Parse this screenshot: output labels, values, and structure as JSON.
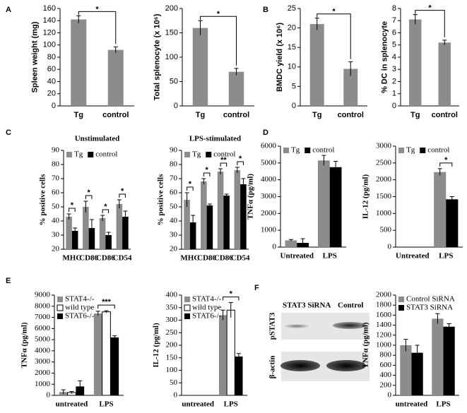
{
  "chart_data": [
    {
      "type": "bar",
      "panel": "A",
      "ylabel": "Spleen weight (mg)",
      "categories": [
        "Tg",
        "control"
      ],
      "series": [
        {
          "color": "#8c8c8c",
          "values": [
            142,
            92
          ],
          "errors": [
            6,
            5
          ]
        }
      ],
      "ylim": [
        0,
        160
      ],
      "yticks": [
        0,
        20,
        40,
        60,
        80,
        100,
        120,
        140,
        160
      ],
      "annotation": "*"
    },
    {
      "type": "bar",
      "ylabel": "Total splenocyte (x 10⁶)",
      "categories": [
        "Tg",
        "control"
      ],
      "series": [
        {
          "color": "#8c8c8c",
          "values": [
            160,
            70
          ],
          "errors": [
            15,
            7
          ]
        }
      ],
      "ylim": [
        0,
        200
      ],
      "yticks": [
        0,
        50,
        100,
        150,
        200
      ],
      "annotation": "*"
    },
    {
      "type": "bar",
      "panel": "B",
      "ylabel": "BMDC yield (x 10⁶)",
      "categories": [
        "Tg",
        "control"
      ],
      "series": [
        {
          "color": "#8c8c8c",
          "values": [
            21,
            9.5
          ],
          "errors": [
            1.5,
            1.8
          ]
        }
      ],
      "ylim": [
        0,
        25
      ],
      "yticks": [
        0,
        5,
        10,
        15,
        20,
        25
      ],
      "annotation": "*"
    },
    {
      "type": "bar",
      "ylabel": "% DC in splenocyte",
      "categories": [
        "Tg",
        "control"
      ],
      "series": [
        {
          "color": "#8c8c8c",
          "values": [
            7.1,
            5.2
          ],
          "errors": [
            0.4,
            0.2
          ]
        }
      ],
      "ylim": [
        0,
        8
      ],
      "yticks": [
        0,
        1,
        2,
        3,
        4,
        5,
        6,
        7,
        8
      ],
      "annotation": "*"
    },
    {
      "type": "bar",
      "panel": "C",
      "title": "Unstimulated",
      "ylabel": "% positive cells",
      "categories": [
        "MHC",
        "CD80",
        "CD86",
        "CD54"
      ],
      "series": [
        {
          "name": "Tg",
          "color": "#8c8c8c",
          "values": [
            43,
            50,
            42,
            52
          ],
          "errors": [
            2,
            4,
            2,
            3
          ]
        },
        {
          "name": "control",
          "color": "#000000",
          "values": [
            33,
            35,
            30,
            43
          ],
          "errors": [
            2,
            6,
            2,
            4
          ]
        }
      ],
      "ylim": [
        20,
        90
      ],
      "yticks": [
        20,
        30,
        40,
        50,
        60,
        70,
        80,
        90
      ],
      "annotations": [
        "*",
        "*",
        "*",
        "*"
      ],
      "legend": "upper left",
      "legend_columns": 2
    },
    {
      "type": "bar",
      "title": "LPS-stimulated",
      "ylabel": "% positive cells",
      "categories": [
        "MHC",
        "CD80",
        "CD86",
        "CD54"
      ],
      "series": [
        {
          "name": "Tg",
          "color": "#8c8c8c",
          "values": [
            55,
            68,
            75,
            76
          ],
          "errors": [
            5,
            2,
            2,
            2
          ]
        },
        {
          "name": "control",
          "color": "#000000",
          "values": [
            39,
            51,
            58,
            66
          ],
          "errors": [
            5,
            1,
            1,
            4
          ]
        }
      ],
      "ylim": [
        20,
        90
      ],
      "yticks": [
        20,
        30,
        40,
        50,
        60,
        70,
        80,
        90
      ],
      "annotations": [
        "*",
        "*",
        "**",
        "*"
      ],
      "legend": "upper left",
      "legend_columns": 2
    },
    {
      "type": "bar",
      "panel": "D",
      "ylabel": "TNFα (pg/ml)",
      "categories": [
        "Untreated",
        "LPS"
      ],
      "series": [
        {
          "name": "Tg",
          "color": "#8c8c8c",
          "values": [
            400,
            5150
          ],
          "errors": [
            50,
            300
          ]
        },
        {
          "name": "control",
          "color": "#000000",
          "values": [
            250,
            4750
          ],
          "errors": [
            250,
            350
          ]
        }
      ],
      "ylim": [
        0,
        6000
      ],
      "yticks": [
        0,
        1000,
        2000,
        3000,
        4000,
        5000,
        6000
      ],
      "legend": "upper left",
      "legend_columns": 2
    },
    {
      "type": "bar",
      "ylabel": "IL-12 (pg/ml)",
      "categories": [
        "Untreated",
        "LPS"
      ],
      "series": [
        {
          "name": "Tg",
          "color": "#8c8c8c",
          "values": [
            0,
            2230
          ],
          "errors": [
            0,
            100
          ]
        },
        {
          "name": "control",
          "color": "#000000",
          "values": [
            0,
            1420
          ],
          "errors": [
            0,
            80
          ]
        }
      ],
      "ylim": [
        0,
        3000
      ],
      "yticks": [
        0,
        500,
        1000,
        1500,
        2000,
        2500,
        3000
      ],
      "annotations": [
        null,
        "*"
      ],
      "legend": "upper left",
      "legend_columns": 2
    },
    {
      "type": "bar",
      "panel": "E",
      "ylabel": "TNFα (pg/ml)",
      "categories": [
        "untreated",
        "LPS"
      ],
      "series": [
        {
          "name": "STAT4-/-",
          "color": "#8c8c8c",
          "values": [
            300,
            7350
          ],
          "errors": [
            200,
            200
          ]
        },
        {
          "name": "wild type",
          "color": "#ffffff",
          "values": [
            250,
            7500
          ],
          "errors": [
            100,
            100
          ]
        },
        {
          "name": "STAT6-/-",
          "color": "#000000",
          "values": [
            800,
            5200
          ],
          "errors": [
            500,
            150
          ]
        }
      ],
      "ylim": [
        0,
        9000
      ],
      "yticks": [
        0,
        1000,
        2000,
        3000,
        4000,
        5000,
        6000,
        7000,
        8000,
        9000
      ],
      "annotations": [
        null,
        "***"
      ],
      "legend": "upper left",
      "legend_columns": 1
    },
    {
      "type": "bar",
      "ylabel": "IL-12 (pg/ml)",
      "categories": [
        "untreated",
        "LPS"
      ],
      "series": [
        {
          "name": "STAT4-/-",
          "color": "#8c8c8c",
          "values": [
            0,
            320
          ],
          "errors": [
            0,
            20
          ]
        },
        {
          "name": "wild type",
          "color": "#ffffff",
          "values": [
            0,
            340
          ],
          "errors": [
            0,
            30
          ]
        },
        {
          "name": "STAT6-/-",
          "color": "#000000",
          "values": [
            0,
            155
          ],
          "errors": [
            0,
            12
          ]
        }
      ],
      "ylim": [
        0,
        400
      ],
      "yticks": [
        0,
        50,
        100,
        150,
        200,
        250,
        300,
        350,
        400
      ],
      "annotations": [
        null,
        "*"
      ],
      "legend": "upper left",
      "legend_columns": 1
    },
    {
      "type": "bar",
      "panel": "F",
      "ylabel": "TNFα (pg/ml)",
      "categories": [
        "untreated",
        "LPS"
      ],
      "series": [
        {
          "name": "Control SiRNA",
          "color": "#8c8c8c",
          "values": [
            1000,
            1530
          ],
          "errors": [
            120,
            100
          ]
        },
        {
          "name": "STAT3 SiRNA",
          "color": "#000000",
          "values": [
            850,
            1370
          ],
          "errors": [
            150,
            60
          ]
        }
      ],
      "ylim": [
        0,
        2000
      ],
      "yticks": [
        0,
        200,
        400,
        600,
        800,
        1000,
        1200,
        1400,
        1600,
        1800,
        2000
      ],
      "legend": "upper left",
      "legend_columns": 1
    }
  ],
  "blot": {
    "columns": [
      "STAT3 SiRNA",
      "Control"
    ],
    "rows": [
      "pSTAT3",
      "β-actin"
    ]
  }
}
